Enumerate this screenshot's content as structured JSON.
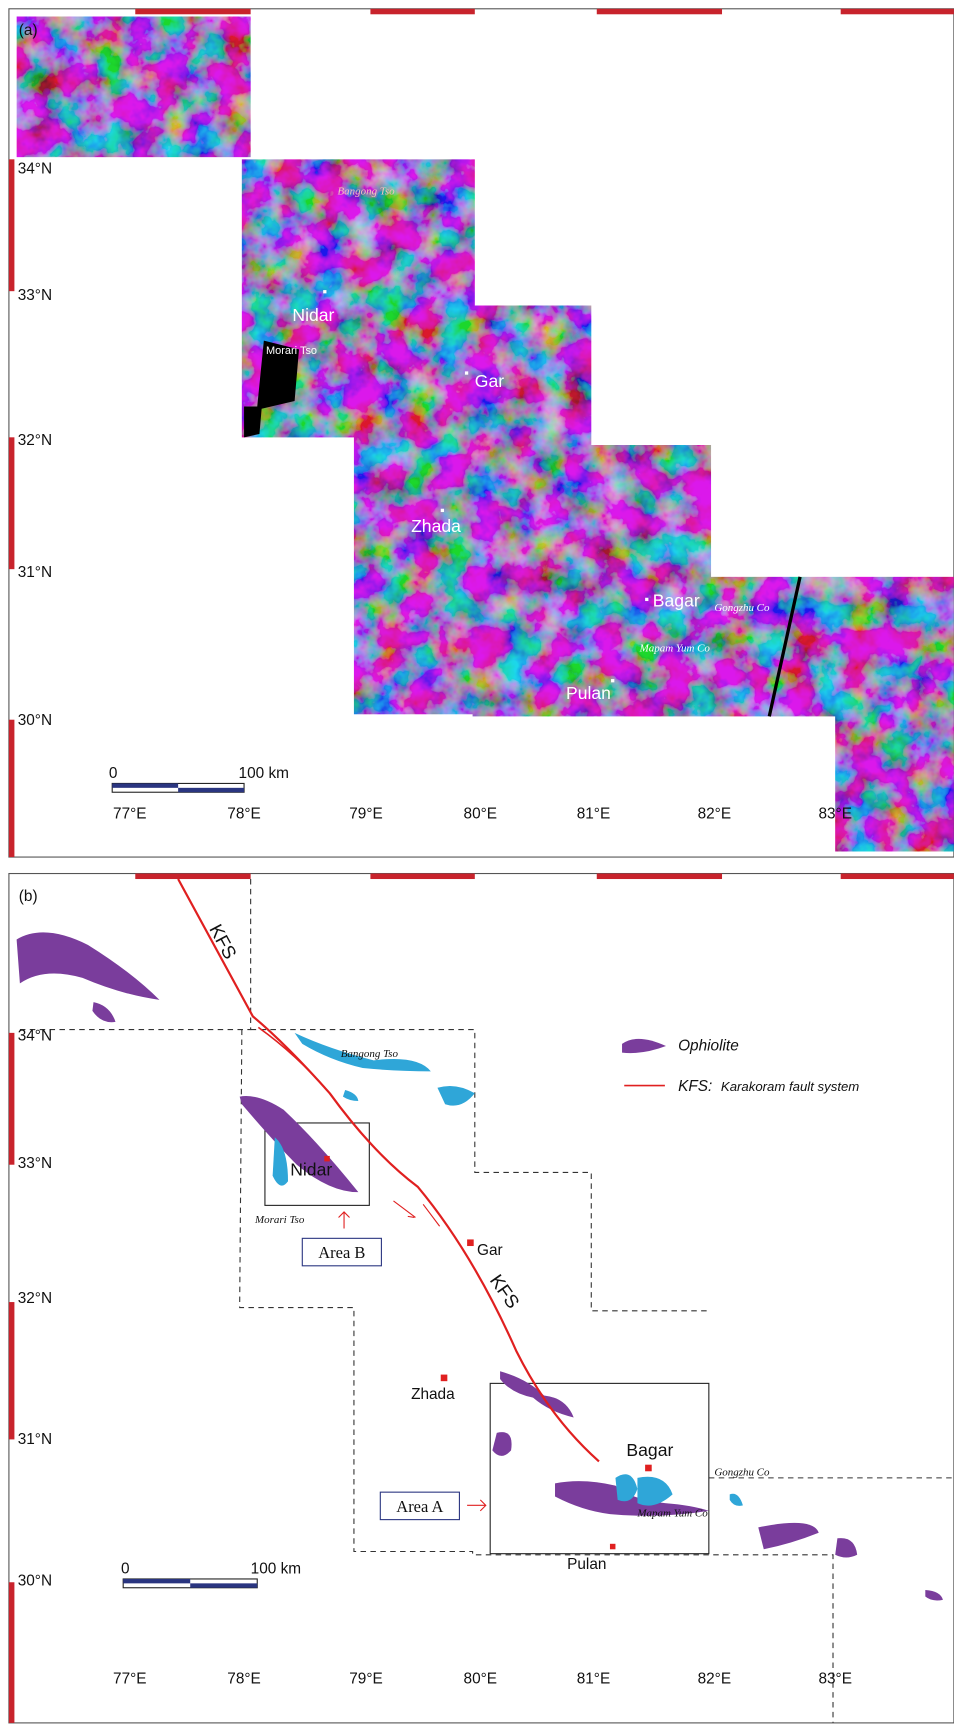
{
  "panel_a": {
    "label": "(a)",
    "lat_labels": [
      "34°N",
      "33°N",
      "32°N",
      "31°N",
      "30°N"
    ],
    "lon_labels": [
      "77°E",
      "78°E",
      "79°E",
      "80°E",
      "81°E",
      "82°E",
      "83°E"
    ],
    "scale_bar": {
      "start": "0",
      "end": "100 km"
    },
    "places": [
      "Bangong Tso",
      "Nidar",
      "Morari Tso",
      "Gar",
      "Zhada",
      "Bagar",
      "Gongzhu Co",
      "Mapam Yum Co",
      "Pulan"
    ]
  },
  "panel_b": {
    "label": "(b)",
    "lat_labels": [
      "34°N",
      "33°N",
      "32°N",
      "31°N",
      "30°N"
    ],
    "lon_labels": [
      "77°E",
      "78°E",
      "79°E",
      "80°E",
      "81°E",
      "82°E",
      "83°E"
    ],
    "scale_bar": {
      "start": "0",
      "end": "100 km"
    },
    "places": [
      "Bangong Tso",
      "Nidar",
      "Morari Tso",
      "Gar",
      "Zhada",
      "Bagar",
      "Gongzhu Co",
      "Mapam Yum Co",
      "Pulan"
    ],
    "fault_labels": [
      "KFS",
      "KFS"
    ],
    "legend": {
      "ophiolite": "Ophiolite",
      "fault_abbr": "KFS:",
      "fault_name": "Karakoram fault system"
    },
    "areas": [
      "Area B",
      "Area A"
    ]
  }
}
